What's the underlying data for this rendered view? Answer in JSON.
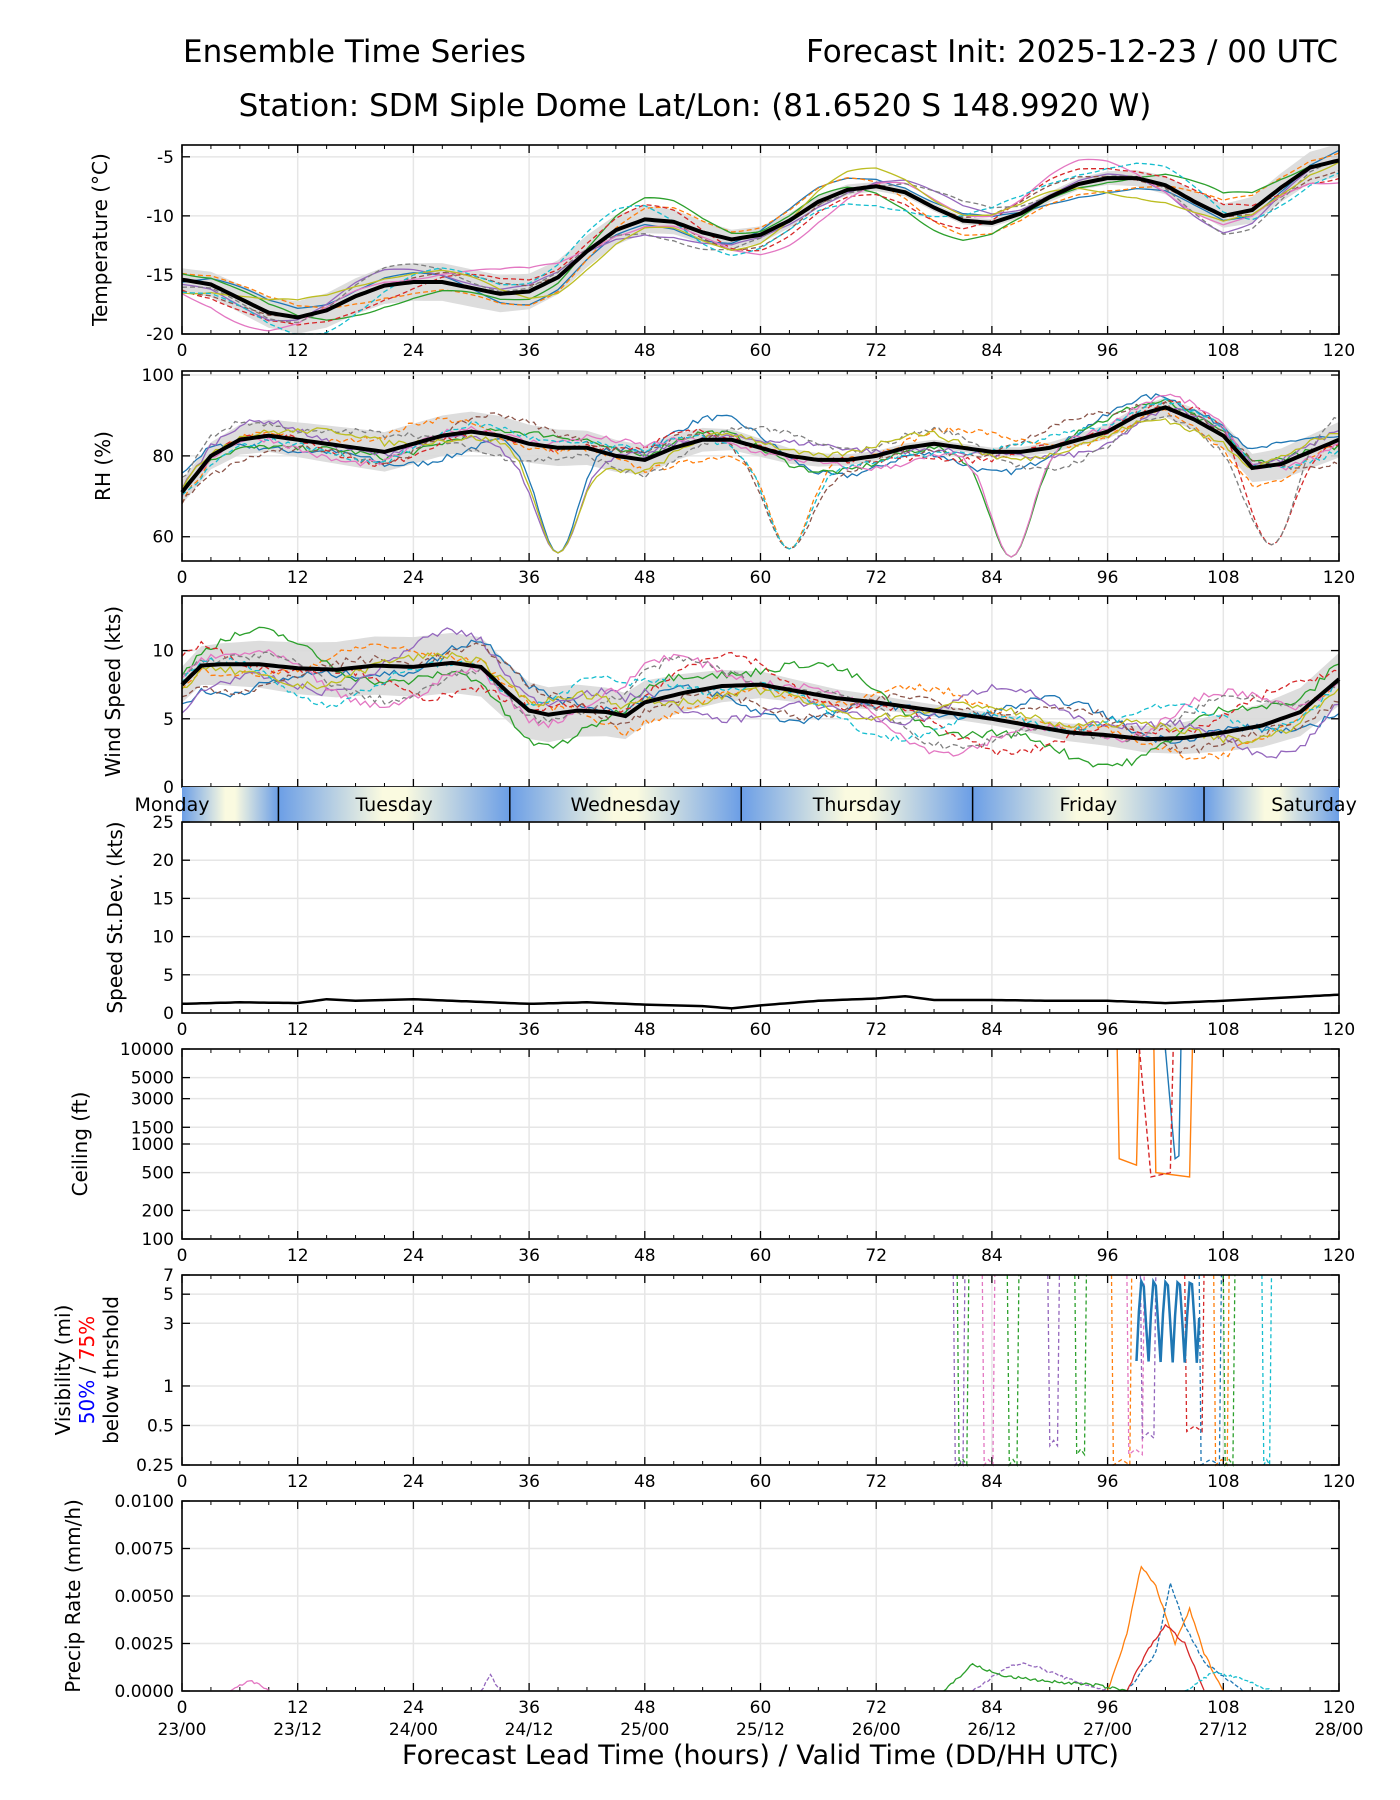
{
  "header": {
    "left_title": "Ensemble Time Series",
    "right_title": "Forecast Init: 2025-12-23 / 00 UTC",
    "station_line": "Station: SDM  Siple Dome    Lat/Lon: (81.6520 S 148.9920 W)"
  },
  "x_axis": {
    "label": "Forecast Lead Time (hours) / Valid Time (DD/HH UTC)",
    "lead_ticks": [
      "0",
      "12",
      "24",
      "36",
      "48",
      "60",
      "72",
      "84",
      "96",
      "108",
      "120"
    ],
    "valid_ticks": [
      "23/00",
      "23/12",
      "24/00",
      "24/12",
      "25/00",
      "25/12",
      "26/00",
      "26/12",
      "27/00",
      "27/12",
      "28/00"
    ],
    "range": [
      0,
      120
    ]
  },
  "days": [
    "Monday",
    "Tuesday",
    "Wednesday",
    "Thursday",
    "Friday",
    "Saturday"
  ],
  "day_boundaries_hours": [
    0,
    10,
    34,
    58,
    82,
    106,
    120
  ],
  "colors": {
    "mean_line": "#000000",
    "spread_fill": "#d9d9d9",
    "grid": "#e6e6e6",
    "day_band_light": "#fafae0",
    "day_band_blue": "#6b9ee6",
    "vis_50_label": "#0000ff",
    "vis_75_label": "#ff0000",
    "members": [
      "#1f77b4",
      "#ff7f0e",
      "#2ca02c",
      "#d62728",
      "#9467bd",
      "#8c564b",
      "#e377c2",
      "#7f7f7f",
      "#bcbd22",
      "#17becf"
    ]
  },
  "chart_data": [
    {
      "type": "line",
      "name": "temperature",
      "ylabel": "Temperature (°C)",
      "yticks": [
        "-5",
        "-10",
        "-15",
        "-20"
      ],
      "ylim": [
        -20,
        -4
      ],
      "mean": {
        "x": [
          0,
          3,
          6,
          9,
          12,
          15,
          18,
          21,
          24,
          27,
          30,
          33,
          36,
          39,
          42,
          45,
          48,
          51,
          54,
          57,
          60,
          63,
          66,
          69,
          72,
          75,
          78,
          81,
          84,
          87,
          90,
          93,
          96,
          99,
          102,
          105,
          108,
          111,
          114,
          117,
          120
        ],
        "y": [
          -15.4,
          -15.8,
          -17.0,
          -18.2,
          -18.6,
          -18.0,
          -16.8,
          -15.9,
          -15.6,
          -15.6,
          -16.1,
          -16.6,
          -16.4,
          -15.2,
          -13.0,
          -11.2,
          -10.3,
          -10.5,
          -11.4,
          -12.0,
          -11.6,
          -10.4,
          -8.8,
          -7.8,
          -7.5,
          -8.0,
          -9.3,
          -10.4,
          -10.6,
          -9.8,
          -8.4,
          -7.3,
          -6.8,
          -6.8,
          -7.4,
          -8.8,
          -10.0,
          -9.5,
          -7.6,
          -5.9,
          -5.3
        ]
      },
      "member_spread": 1.6
    },
    {
      "type": "line",
      "name": "relative_humidity",
      "ylabel": "RH (%)",
      "yticks": [
        "100",
        "80",
        "60"
      ],
      "ylim": [
        54,
        101
      ],
      "mean": {
        "x": [
          0,
          3,
          6,
          9,
          12,
          15,
          18,
          21,
          24,
          27,
          30,
          33,
          36,
          39,
          42,
          45,
          48,
          51,
          54,
          57,
          60,
          63,
          66,
          69,
          72,
          75,
          78,
          81,
          84,
          87,
          90,
          93,
          96,
          99,
          102,
          105,
          108,
          111,
          114,
          117,
          120
        ],
        "y": [
          71,
          80,
          84,
          85,
          84,
          83,
          82,
          81,
          83,
          85,
          86,
          85,
          83,
          82,
          82,
          80,
          79,
          82,
          84,
          84,
          82,
          80,
          79,
          79,
          80,
          82,
          83,
          82,
          81,
          81,
          82,
          84,
          86,
          90,
          92,
          89,
          85,
          77,
          78,
          81,
          84
        ]
      },
      "member_spread": 5,
      "note_dips": [
        {
          "x": 39,
          "y": 56
        },
        {
          "x": 63,
          "y": 57
        },
        {
          "x": 86,
          "y": 55
        },
        {
          "x": 113,
          "y": 58
        }
      ]
    },
    {
      "type": "line",
      "name": "wind_speed",
      "ylabel": "Wind Speed (kts)",
      "yticks": [
        "10",
        "5",
        "0"
      ],
      "ylim": [
        0,
        14
      ],
      "mean": {
        "x": [
          0,
          2,
          4,
          8,
          12,
          16,
          20,
          24,
          28,
          31,
          34,
          36,
          38,
          41,
          44,
          46,
          48,
          52,
          56,
          60,
          64,
          68,
          72,
          76,
          80,
          84,
          88,
          92,
          96,
          100,
          104,
          108,
          112,
          116,
          120
        ],
        "y": [
          7.5,
          8.9,
          9.0,
          9.0,
          8.7,
          8.6,
          8.9,
          8.8,
          9.1,
          8.8,
          6.8,
          5.6,
          5.3,
          5.6,
          5.5,
          5.2,
          6.2,
          6.9,
          7.4,
          7.5,
          7.0,
          6.5,
          6.2,
          5.8,
          5.4,
          5.0,
          4.5,
          4.0,
          3.8,
          3.5,
          3.6,
          4.0,
          4.5,
          5.5,
          7.9
        ]
      },
      "member_spread": 2.2
    },
    {
      "type": "line",
      "name": "speed_stdev",
      "ylabel": "Speed St.Dev. (kts)",
      "yticks": [
        "25",
        "20",
        "15",
        "10",
        "5",
        "0"
      ],
      "ylim": [
        0,
        25
      ],
      "mean": {
        "x": [
          0,
          6,
          12,
          15,
          18,
          24,
          30,
          36,
          42,
          48,
          54,
          57,
          60,
          66,
          72,
          75,
          78,
          84,
          90,
          96,
          102,
          108,
          114,
          120
        ],
        "y": [
          1.2,
          1.4,
          1.3,
          1.8,
          1.6,
          1.8,
          1.5,
          1.2,
          1.4,
          1.1,
          0.9,
          0.6,
          1.0,
          1.6,
          1.9,
          2.2,
          1.7,
          1.7,
          1.6,
          1.6,
          1.3,
          1.6,
          2.0,
          2.4
        ]
      }
    },
    {
      "type": "line",
      "name": "ceiling",
      "ylabel": "Ceiling (ft)",
      "yticks": [
        "10000",
        "5000",
        "3000",
        "1500",
        "1000",
        "500",
        "200",
        "100"
      ],
      "ylim": [
        100,
        10000
      ],
      "yscale": "log",
      "series": [
        {
          "name": "member orange",
          "x": [
            97.0,
            97.2,
            99.0,
            99.3
          ],
          "y": [
            10000,
            700,
            600,
            10000
          ]
        },
        {
          "name": "member orange 2",
          "x": [
            100.8,
            101.0,
            104.5,
            104.8
          ],
          "y": [
            10000,
            500,
            450,
            10000
          ]
        },
        {
          "name": "member blue",
          "x": [
            102.0,
            103.0,
            103.4,
            103.6
          ],
          "y": [
            10000,
            700,
            750,
            10000
          ]
        },
        {
          "name": "member red dashed",
          "x": [
            99.3,
            100.5,
            102.5,
            102.8
          ],
          "y": [
            10000,
            450,
            500,
            10000
          ]
        }
      ]
    },
    {
      "type": "line",
      "name": "visibility",
      "ylabel_lines": [
        "Visibility (mi)",
        "50%",
        "/",
        "75%",
        "below thrshold"
      ],
      "yticks": [
        "7",
        "5",
        "3",
        "1",
        "0.5",
        "0.25"
      ],
      "ylim": [
        0.25,
        7
      ],
      "yscale": "log",
      "note": "low-visibility members drop near hours 80-84, 86, 90-93 and 96-115"
    },
    {
      "type": "line",
      "name": "precip_rate",
      "ylabel": "Precip Rate (mm/h)",
      "yticks": [
        "0.0100",
        "0.0075",
        "0.0050",
        "0.0025",
        "0.0000"
      ],
      "ylim": [
        0,
        0.01
      ],
      "series": [
        {
          "name": "member orange",
          "x": [
            96,
            98,
            99.5,
            101,
            103,
            104.5,
            106,
            108
          ],
          "y": [
            0,
            0.003,
            0.0066,
            0.0055,
            0.0025,
            0.0043,
            0.002,
            0
          ]
        },
        {
          "name": "member blue",
          "x": [
            98,
            101,
            102.5,
            104,
            106,
            108,
            110
          ],
          "y": [
            0,
            0.002,
            0.0057,
            0.0035,
            0.0015,
            0.0008,
            0
          ]
        },
        {
          "name": "member red",
          "x": [
            98,
            100,
            102,
            104,
            106
          ],
          "y": [
            0,
            0.002,
            0.0035,
            0.0025,
            0
          ]
        },
        {
          "name": "member purple",
          "x": [
            82,
            86,
            88,
            92,
            96
          ],
          "y": [
            0,
            0.0014,
            0.0014,
            0.0006,
            0
          ]
        },
        {
          "name": "member green",
          "x": [
            79,
            82,
            85,
            90,
            95,
            98
          ],
          "y": [
            0,
            0.0014,
            0.0008,
            0.0005,
            0.0003,
            0
          ]
        },
        {
          "name": "member cyan",
          "x": [
            104,
            107,
            110,
            113
          ],
          "y": [
            0,
            0.001,
            0.0006,
            0
          ]
        },
        {
          "name": "member pink",
          "x": [
            5,
            7,
            9
          ],
          "y": [
            0,
            0.0006,
            0
          ]
        },
        {
          "name": "member purple early",
          "x": [
            31,
            32,
            33
          ],
          "y": [
            0,
            0.0008,
            0
          ]
        }
      ]
    }
  ]
}
